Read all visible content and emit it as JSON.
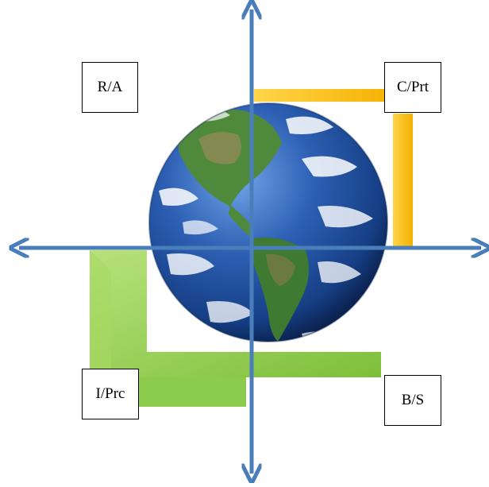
{
  "labels": {
    "top_left": "R/A",
    "top_right": "C/Prt",
    "bottom_left": "I/Prc",
    "bottom_right": "B/S"
  },
  "colors": {
    "axis": "#4a7ebb",
    "yellow_bracket": "#ffc000",
    "green_bracket": "#92d050",
    "ocean": "#1f4f9e",
    "land": "#4f8a3c"
  },
  "icons": {
    "center": "earth-globe-icon"
  }
}
